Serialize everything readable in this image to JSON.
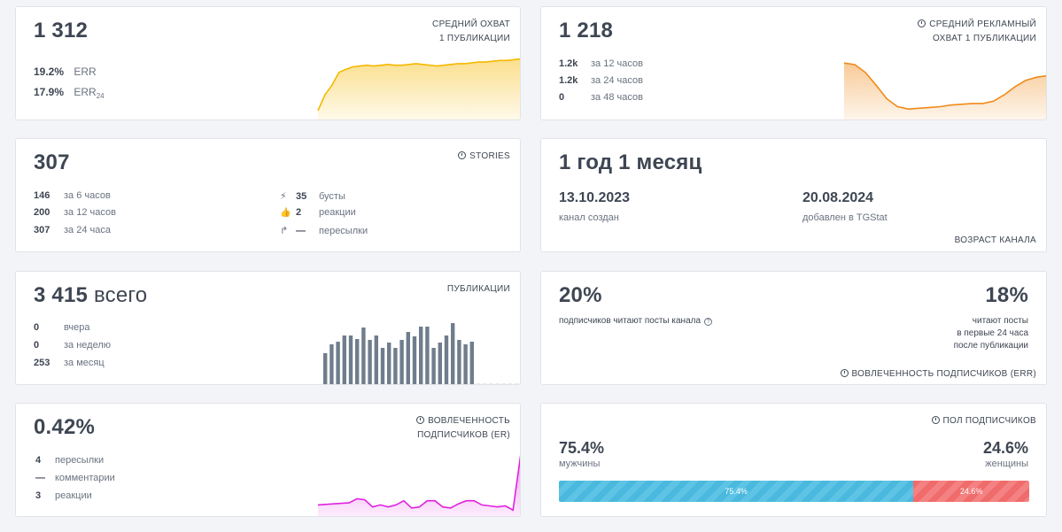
{
  "reach": {
    "value": "1 312",
    "label_line1": "СРЕДНИЙ ОХВАТ",
    "label_line2": "1 ПУБЛИКАЦИИ",
    "err": {
      "value": "19.2%",
      "label": "ERR"
    },
    "err24": {
      "value": "17.9%",
      "label": "ERR",
      "sub": "24"
    },
    "color": "#f5b800"
  },
  "ad_reach": {
    "value": "1 218",
    "label_line1": "СРЕДНИЙ РЕКЛАМНЫЙ",
    "label_line2": "ОХВАТ 1 ПУБЛИКАЦИИ",
    "rows": [
      {
        "value": "1.2k",
        "label": "за 12 часов"
      },
      {
        "value": "1.2k",
        "label": "за 24 часов"
      },
      {
        "value": "0",
        "label": "за 48 часов"
      }
    ],
    "color": "#f08a1a"
  },
  "stories": {
    "value": "307",
    "label": "STORIES",
    "left_rows": [
      {
        "value": "146",
        "label": "за 6 часов"
      },
      {
        "value": "200",
        "label": "за 12 часов"
      },
      {
        "value": "307",
        "label": "за 24 часа"
      }
    ],
    "right_rows": [
      {
        "icon": "lightning-icon",
        "glyph": "⚡",
        "value": "35",
        "label": "бусты"
      },
      {
        "icon": "thumbs-up-icon",
        "glyph": "👍",
        "value": "2",
        "label": "реакции"
      },
      {
        "icon": "forward-icon",
        "glyph": "↱",
        "value": "—",
        "label": "пересылки"
      }
    ]
  },
  "age": {
    "value": "1 год 1 месяц",
    "created_date": "13.10.2023",
    "created_label": "канал создан",
    "added_date": "20.08.2024",
    "added_label": "добавлен в TGStat",
    "label": "ВОЗРАСТ КАНАЛА"
  },
  "publications": {
    "value": "3 415",
    "suffix": "всего",
    "label": "ПУБЛИКАЦИИ",
    "rows": [
      {
        "value": "0",
        "label": "вчера"
      },
      {
        "value": "0",
        "label": "за неделю"
      },
      {
        "value": "253",
        "label": "за месяц"
      }
    ],
    "color": "#6f7d8c"
  },
  "err_percent": {
    "left_value": "20%",
    "left_label": "подписчиков читают посты канала",
    "right_value": "18%",
    "right_line1": "читают посты",
    "right_line2": "в первые 24 часа",
    "right_line3": "после публикации",
    "label": "ВОВЛЕЧЕННОСТЬ ПОДПИСЧИКОВ (ERR)"
  },
  "er": {
    "value": "0.42%",
    "label_line1": "ВОВЛЕЧЕННОСТЬ",
    "label_line2": "ПОДПИСЧИКОВ (ER)",
    "rows": [
      {
        "value": "4",
        "label": "пересылки"
      },
      {
        "value": "—",
        "label": "комментарии"
      },
      {
        "value": "3",
        "label": "реакции"
      }
    ],
    "color": "#e021e0"
  },
  "gender": {
    "label": "ПОЛ ПОДПИСЧИКОВ",
    "male_value": "75.4%",
    "male_label": "мужчины",
    "female_value": "24.6%",
    "female_label": "женщины",
    "bar_male": "75.4%",
    "bar_female": "24.6%",
    "male_share": 75.4,
    "female_share": 24.6
  },
  "chart_data": [
    {
      "type": "area",
      "title": "reach sparkline",
      "values": [
        10,
        30,
        42,
        58,
        62,
        65,
        66,
        67,
        66,
        67,
        68,
        67,
        67,
        68,
        69,
        68,
        67,
        66,
        67,
        68,
        69,
        69,
        70,
        71,
        71,
        72,
        73,
        73,
        74,
        75
      ]
    },
    {
      "type": "area",
      "title": "ad reach sparkline",
      "values": [
        70,
        68,
        58,
        42,
        25,
        15,
        12,
        13,
        14,
        15,
        17,
        18,
        19,
        19,
        22,
        30,
        40,
        48,
        52,
        54
      ]
    },
    {
      "type": "bar",
      "title": "publications per day",
      "values": [
        36,
        46,
        49,
        56,
        56,
        52,
        65,
        51,
        56,
        42,
        48,
        42,
        51,
        60,
        55,
        66,
        66,
        42,
        48,
        56,
        70,
        51,
        46,
        49,
        0,
        0,
        0,
        0,
        0,
        0,
        0,
        0,
        0
      ]
    },
    {
      "type": "area",
      "title": "ER sparkline",
      "values": [
        10,
        10.5,
        11,
        11.5,
        12,
        16,
        15,
        8,
        10,
        8,
        10,
        14,
        7,
        8,
        14,
        14,
        8,
        7,
        11,
        14,
        14,
        10,
        9,
        8,
        9,
        5,
        60
      ]
    }
  ]
}
